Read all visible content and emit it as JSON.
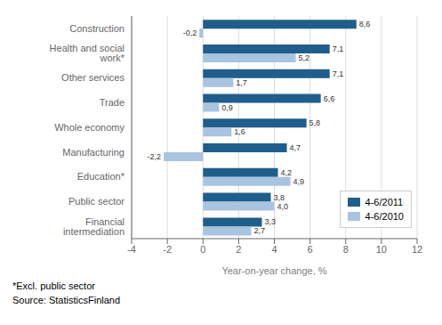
{
  "chart_data": {
    "type": "bar",
    "orientation": "horizontal",
    "categories": [
      "Financial intermediation",
      "Public sector",
      "Education*",
      "Manufacturing",
      "Whole economy",
      "Trade",
      "Other services",
      "Health and social work*",
      "Construction"
    ],
    "series": [
      {
        "name": "4-6/2011",
        "color": "#1F5E8A",
        "values": [
          3.3,
          3.8,
          4.2,
          4.7,
          5.8,
          6.6,
          7.1,
          7.1,
          8.6
        ],
        "value_labels": [
          "3,3",
          "3,8",
          "4,2",
          "4,7",
          "5,8",
          "6,6",
          "7,1",
          "7,1",
          "8,6"
        ]
      },
      {
        "name": "4-6/2010",
        "color": "#A8C4E0",
        "values": [
          2.7,
          4.0,
          4.9,
          -2.2,
          1.6,
          0.9,
          1.7,
          5.2,
          -0.2
        ],
        "value_labels": [
          "2,7",
          "4,0",
          "4,9",
          "-2,2",
          "1,6",
          "0,9",
          "1,7",
          "5,2",
          "-0,2"
        ]
      }
    ],
    "xlabel": "Year-on-year change, %",
    "xlim": [
      -4,
      12
    ],
    "xticks": [
      -4,
      -2,
      0,
      2,
      4,
      6,
      8,
      10,
      12
    ],
    "grid": true,
    "legend": "lower right",
    "data_labels": true,
    "annotations": [
      "*Excl. public sector",
      "Source: StatisticsFinland"
    ]
  }
}
